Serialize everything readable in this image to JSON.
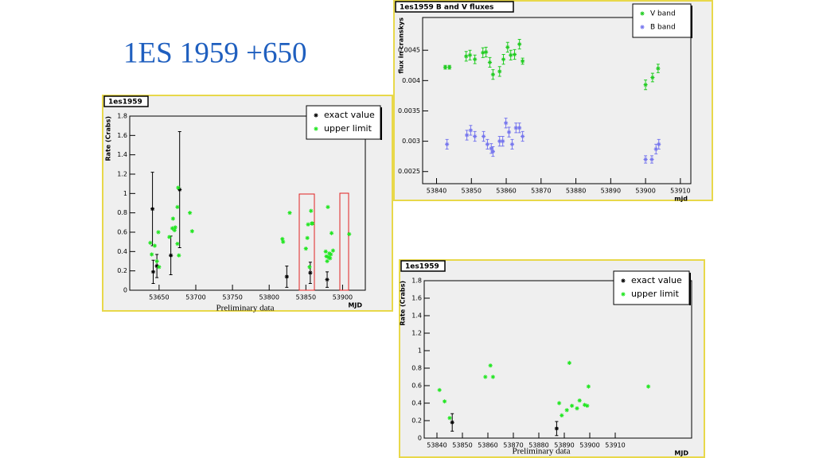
{
  "title": "1ES 1959 +650",
  "chart_data": [
    {
      "type": "scatter",
      "title": "1es1959",
      "y_label": "Rate (Crabs)",
      "x_label": "MJD",
      "note": "Preliminary data",
      "xlim": [
        53610,
        53931
      ],
      "ylim": [
        0,
        1.8
      ],
      "xticks": [
        53650,
        53700,
        53750,
        53800,
        53850,
        53900
      ],
      "yticks": [
        0,
        0.2,
        0.4,
        0.6,
        0.8,
        1,
        1.2,
        1.4,
        1.6,
        1.8
      ],
      "legend": "upper right",
      "series": [
        {
          "name": "exact value",
          "color": "#000000",
          "x": [
            53641,
            53642,
            53647,
            53666,
            53678,
            53824,
            53856,
            53879
          ],
          "values": [
            0.84,
            0.19,
            0.25,
            0.36,
            1.04,
            0.14,
            0.18,
            0.11
          ],
          "errors": [
            0.38,
            0.12,
            0.12,
            0.2,
            0.6,
            0.11,
            0.11,
            0.08
          ]
        },
        {
          "name": "upper limit",
          "color": "#22e622",
          "x": [
            53638,
            53640,
            53644,
            53647,
            53649,
            53650,
            53664,
            53668,
            53669,
            53671,
            53672,
            53675,
            53676,
            53677,
            53675,
            53692,
            53695,
            53818,
            53819,
            53828,
            53850,
            53852,
            53853,
            53855,
            53857,
            53858,
            53859,
            53877,
            53878,
            53879,
            53880,
            53881,
            53882,
            53883,
            53884,
            53885,
            53887,
            53909
          ],
          "values": [
            0.49,
            0.37,
            0.46,
            0.3,
            0.6,
            0.24,
            0.55,
            0.64,
            0.74,
            0.62,
            0.65,
            0.86,
            1.06,
            0.36,
            0.48,
            0.8,
            0.61,
            0.53,
            0.5,
            0.8,
            0.43,
            0.54,
            0.68,
            0.24,
            0.82,
            0.69,
            0.69,
            0.4,
            0.35,
            0.3,
            0.86,
            0.34,
            0.38,
            0.33,
            0.37,
            0.59,
            0.41,
            0.58
          ]
        }
      ]
    },
    {
      "type": "scatter",
      "title": "1es1959 B and V fluxes",
      "y_label": "flux in cranskys",
      "x_label": "mjd",
      "xlim": [
        53836,
        53913
      ],
      "ylim": [
        0.0023,
        0.00504
      ],
      "xticks": [
        53840,
        53850,
        53860,
        53870,
        53880,
        53890,
        53900,
        53910
      ],
      "yticks": [
        0.0025,
        0.003,
        0.0035,
        0.004,
        0.0045
      ],
      "legend": "upper right",
      "series": [
        {
          "name": "V band",
          "color": "#22cc22",
          "x": [
            53842.5,
            53843.7,
            53848.5,
            53849.6,
            53851,
            53853.3,
            53854.2,
            53855.3,
            53856.2,
            53858.1,
            53859.2,
            53860.4,
            53861.3,
            53862.4,
            53863.8,
            53864.7,
            53900,
            53902,
            53903.6
          ],
          "values": [
            0.00422,
            0.00422,
            0.0044,
            0.00442,
            0.00435,
            0.00446,
            0.00447,
            0.0043,
            0.0041,
            0.00415,
            0.00435,
            0.00455,
            0.00442,
            0.00443,
            0.0046,
            0.00432,
            0.00393,
            0.00405,
            0.0042
          ],
          "errors": [
            3e-05,
            3e-05,
            8e-05,
            8e-05,
            7e-05,
            8e-05,
            8e-05,
            8e-05,
            8e-05,
            8e-05,
            8e-05,
            8e-05,
            8e-05,
            8e-05,
            8e-05,
            5e-05,
            8e-05,
            7e-05,
            7e-05
          ]
        },
        {
          "name": "B band",
          "color": "#7777ee",
          "x": [
            53843,
            53848.7,
            53849.8,
            53851,
            53853.5,
            53854.6,
            53855.7,
            53856.2,
            53858.1,
            53859,
            53859.9,
            53860.8,
            53861.7,
            53862.8,
            53863.8,
            53864.7,
            53900,
            53901.8,
            53903,
            53903.8
          ],
          "values": [
            0.00295,
            0.0031,
            0.00318,
            0.00308,
            0.00308,
            0.00295,
            0.00288,
            0.00283,
            0.003,
            0.003,
            0.0033,
            0.00315,
            0.00295,
            0.00322,
            0.00322,
            0.00308,
            0.0027,
            0.0027,
            0.00287,
            0.00295
          ],
          "errors": [
            8e-05,
            8e-05,
            8e-05,
            8e-05,
            8e-05,
            8e-05,
            8e-05,
            8e-05,
            8e-05,
            8e-05,
            8e-05,
            8e-05,
            8e-05,
            8e-05,
            8e-05,
            8e-05,
            6e-05,
            6e-05,
            8e-05,
            8e-05
          ]
        }
      ]
    },
    {
      "type": "scatter",
      "title": "1es1959",
      "y_label": "Rate (Crabs)",
      "x_label": "MJD",
      "note": "Preliminary data",
      "xlim": [
        53835,
        53940
      ],
      "ylim": [
        0,
        1.8
      ],
      "xticks": [
        53840,
        53850,
        53860,
        53870,
        53880,
        53890,
        53900,
        53910
      ],
      "yticks": [
        0,
        0.2,
        0.4,
        0.6,
        0.8,
        1,
        1.2,
        1.4,
        1.6,
        1.8
      ],
      "legend": "upper right",
      "series": [
        {
          "name": "exact value",
          "color": "#000000",
          "x": [
            53846,
            53887
          ],
          "values": [
            0.18,
            0.11
          ],
          "errors": [
            0.1,
            0.08
          ]
        },
        {
          "name": "upper limit",
          "color": "#22e622",
          "x": [
            53841,
            53843,
            53845,
            53859,
            53861,
            53862,
            53888,
            53889,
            53891,
            53892,
            53893,
            53895,
            53896,
            53898,
            53899,
            53899.5,
            53923
          ],
          "values": [
            0.55,
            0.42,
            0.23,
            0.7,
            0.83,
            0.7,
            0.4,
            0.26,
            0.32,
            0.86,
            0.37,
            0.34,
            0.43,
            0.38,
            0.37,
            0.59,
            0.59
          ]
        }
      ]
    }
  ]
}
